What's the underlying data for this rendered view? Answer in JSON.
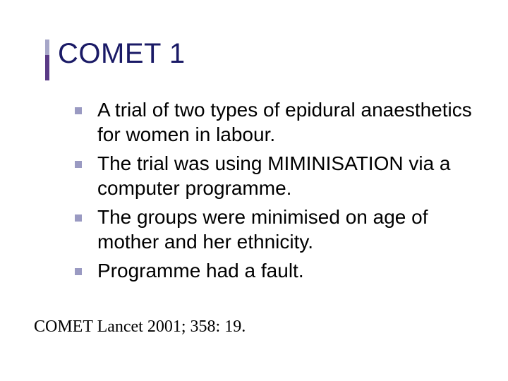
{
  "slide": {
    "title": "COMET 1",
    "title_color": "#1a1a66",
    "title_fontsize": 40,
    "accent_colors": {
      "top": "#a6a6c8",
      "bottom": "#5a3a86"
    },
    "bullets": [
      {
        "text": "A trial of two types of epidural anaesthetics for women in labour."
      },
      {
        "text": "The trial was using MIMINISATION via a computer programme."
      },
      {
        "text": "The groups were minimised on age of mother and her ethnicity."
      },
      {
        "text": "Programme had a fault."
      }
    ],
    "bullet_marker_color": "#9a9ac2",
    "bullet_fontsize": 28,
    "bullet_text_color": "#000000",
    "citation": "COMET Lancet 2001; 358: 19.",
    "citation_fontsize": 24,
    "background_color": "#ffffff"
  }
}
